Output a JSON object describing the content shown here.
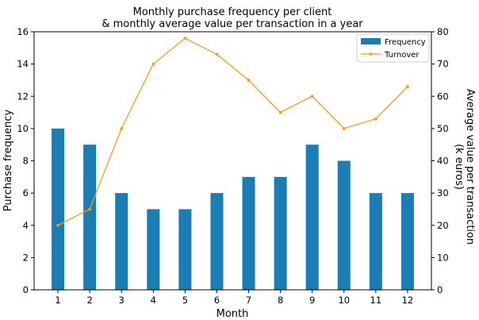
{
  "chart_data": {
    "type": "bar+line",
    "title_line1": "Monthly purchase frequency per client",
    "title_line2": "& monthly average value per transaction in a year",
    "xlabel": "Month",
    "ylabel_left": "Purchase frequency",
    "ylabel_right_line1": "Average value per transaction",
    "ylabel_right_line2": "(k euros)",
    "categories": [
      "1",
      "2",
      "3",
      "4",
      "5",
      "6",
      "7",
      "8",
      "9",
      "10",
      "11",
      "12"
    ],
    "x": [
      1,
      2,
      3,
      4,
      5,
      6,
      7,
      8,
      9,
      10,
      11,
      12
    ],
    "ylim_left": [
      0,
      16
    ],
    "ylim_right": [
      0,
      80
    ],
    "yticks_left": [
      "0",
      "2",
      "4",
      "6",
      "8",
      "10",
      "12",
      "14",
      "16"
    ],
    "yticks_right": [
      "0",
      "10",
      "20",
      "30",
      "40",
      "50",
      "60",
      "70",
      "80"
    ],
    "grid": false,
    "legend_position": "top-right",
    "series": [
      {
        "name": "Frequency",
        "type": "bar",
        "axis": "left",
        "color": "#1a7db4",
        "values": [
          10,
          9,
          6,
          5,
          5,
          6,
          7,
          7,
          9,
          8,
          6,
          6
        ]
      },
      {
        "name": "Turnover",
        "type": "line",
        "axis": "right",
        "color": "#f39c1e",
        "marker": "dot",
        "values": [
          20,
          25,
          50,
          70,
          78,
          73,
          65,
          55,
          60,
          50,
          53,
          63
        ]
      }
    ]
  }
}
